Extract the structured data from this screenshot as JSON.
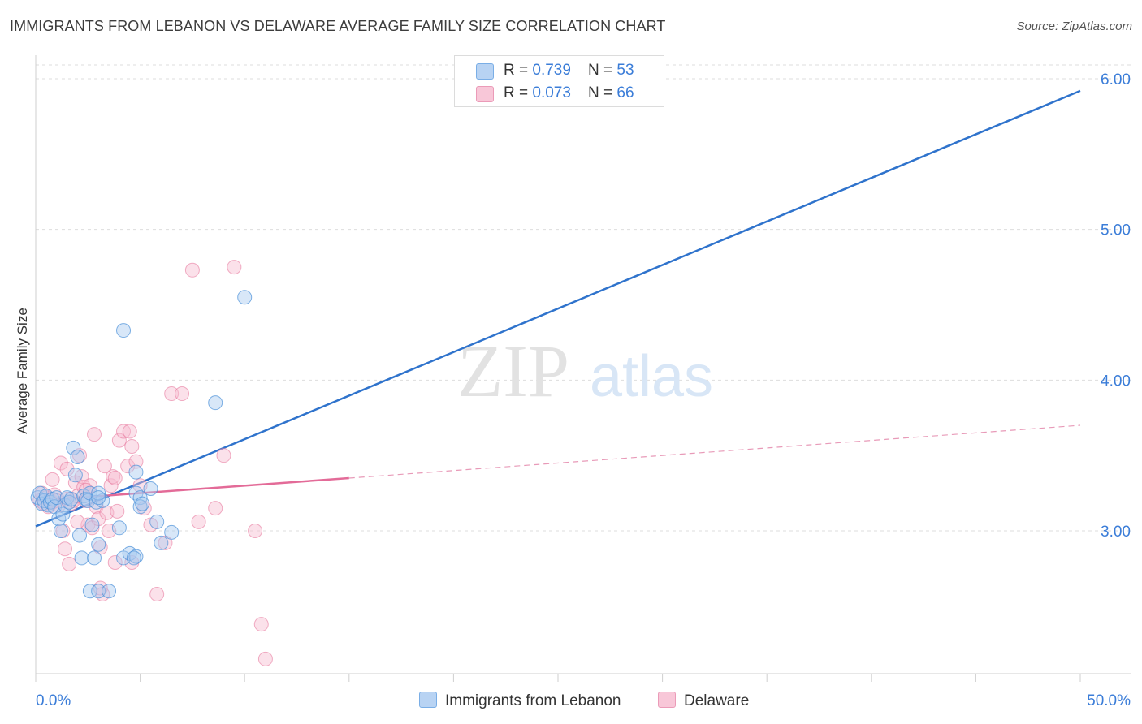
{
  "title": "IMMIGRANTS FROM LEBANON VS DELAWARE AVERAGE FAMILY SIZE CORRELATION CHART",
  "source": "Source: ZipAtlas.com",
  "watermark": {
    "zip": "ZIP",
    "atlas": "atlas"
  },
  "colors": {
    "blue": "#4a90d9",
    "blue_fill": "#a9c9f0",
    "pink": "#e8799f",
    "pink_fill": "#f6bcd0",
    "accent_text": "#3b7dd8",
    "grid": "#dddddd"
  },
  "legend": {
    "rows": [
      {
        "r_label": "R = ",
        "r_value": "0.739",
        "n_label": "N = ",
        "n_value": "53"
      },
      {
        "r_label": "R = ",
        "r_value": "0.073",
        "n_label": "N = ",
        "n_value": "66"
      }
    ]
  },
  "bottom_legend": {
    "series1": "Immigrants from Lebanon",
    "series2": "Delaware"
  },
  "chart_data": {
    "type": "scatter",
    "xlabel": "",
    "ylabel": "Average Family Size",
    "xlim": [
      0,
      50
    ],
    "ylim": [
      2.0,
      6.15
    ],
    "x_tick_labels": [
      "0.0%",
      "50.0%"
    ],
    "y_ticks": [
      3.0,
      4.0,
      5.0,
      6.0
    ],
    "y_tick_labels": [
      "3.00",
      "4.00",
      "5.00",
      "6.00"
    ],
    "grid": "horizontal dashed",
    "series": [
      {
        "name": "Immigrants from Lebanon",
        "r": 0.739,
        "n": 53,
        "trend": {
          "x0": 0.0,
          "y0": 3.03,
          "x1": 50.0,
          "y1": 5.92,
          "dashed_from": null
        },
        "points": [
          [
            0.1,
            3.22
          ],
          [
            0.2,
            3.25
          ],
          [
            0.3,
            3.18
          ],
          [
            0.4,
            3.2
          ],
          [
            0.5,
            3.23
          ],
          [
            0.6,
            3.17
          ],
          [
            0.7,
            3.19
          ],
          [
            0.8,
            3.21
          ],
          [
            0.9,
            3.16
          ],
          [
            1.0,
            3.22
          ],
          [
            1.1,
            3.08
          ],
          [
            1.2,
            3.0
          ],
          [
            1.3,
            3.11
          ],
          [
            1.4,
            3.17
          ],
          [
            1.5,
            3.22
          ],
          [
            1.6,
            3.19
          ],
          [
            1.7,
            3.21
          ],
          [
            1.8,
            3.55
          ],
          [
            1.9,
            3.37
          ],
          [
            2.0,
            3.49
          ],
          [
            2.1,
            2.97
          ],
          [
            2.2,
            2.82
          ],
          [
            2.3,
            3.23
          ],
          [
            2.4,
            3.21
          ],
          [
            2.5,
            3.2
          ],
          [
            2.6,
            3.25
          ],
          [
            2.7,
            3.04
          ],
          [
            2.8,
            2.82
          ],
          [
            2.9,
            3.19
          ],
          [
            3.0,
            2.91
          ],
          [
            3.2,
            3.2
          ],
          [
            2.6,
            2.6
          ],
          [
            3.0,
            2.6
          ],
          [
            3.0,
            3.25
          ],
          [
            3.0,
            3.22
          ],
          [
            3.5,
            2.6
          ],
          [
            4.0,
            3.02
          ],
          [
            4.2,
            2.82
          ],
          [
            4.5,
            2.85
          ],
          [
            4.8,
            3.25
          ],
          [
            5.0,
            3.22
          ],
          [
            5.5,
            3.28
          ],
          [
            6.0,
            2.92
          ],
          [
            4.8,
            2.83
          ],
          [
            4.7,
            2.82
          ],
          [
            5.0,
            3.16
          ],
          [
            4.2,
            4.33
          ],
          [
            5.1,
            3.18
          ],
          [
            4.8,
            3.39
          ],
          [
            5.8,
            3.06
          ],
          [
            8.6,
            3.85
          ],
          [
            6.5,
            2.99
          ],
          [
            10.0,
            4.55
          ]
        ]
      },
      {
        "name": "Delaware",
        "r": 0.073,
        "n": 66,
        "trend": {
          "x0": 0.0,
          "y0": 3.2,
          "x1": 50.0,
          "y1": 3.7,
          "dashed_from": 15.0
        },
        "points": [
          [
            0.2,
            3.2
          ],
          [
            0.3,
            3.25
          ],
          [
            0.4,
            3.18
          ],
          [
            0.5,
            3.22
          ],
          [
            0.6,
            3.16
          ],
          [
            0.7,
            3.2
          ],
          [
            0.8,
            3.19
          ],
          [
            0.9,
            3.24
          ],
          [
            1.0,
            3.2
          ],
          [
            1.1,
            3.17
          ],
          [
            1.2,
            3.45
          ],
          [
            1.3,
            3.0
          ],
          [
            1.4,
            2.88
          ],
          [
            1.5,
            3.21
          ],
          [
            1.6,
            2.78
          ],
          [
            1.7,
            3.18
          ],
          [
            1.8,
            3.2
          ],
          [
            1.9,
            3.32
          ],
          [
            2.0,
            3.23
          ],
          [
            2.1,
            3.5
          ],
          [
            2.2,
            3.36
          ],
          [
            2.3,
            3.29
          ],
          [
            2.4,
            3.2
          ],
          [
            2.5,
            3.04
          ],
          [
            2.6,
            3.3
          ],
          [
            2.7,
            3.02
          ],
          [
            2.8,
            3.64
          ],
          [
            2.9,
            3.16
          ],
          [
            3.0,
            3.08
          ],
          [
            3.1,
            2.89
          ],
          [
            3.2,
            2.58
          ],
          [
            3.3,
            3.43
          ],
          [
            3.4,
            3.12
          ],
          [
            3.5,
            3.0
          ],
          [
            3.6,
            3.3
          ],
          [
            3.7,
            3.36
          ],
          [
            3.8,
            3.35
          ],
          [
            3.9,
            3.13
          ],
          [
            4.0,
            3.6
          ],
          [
            4.2,
            3.66
          ],
          [
            4.4,
            3.43
          ],
          [
            4.5,
            3.66
          ],
          [
            4.6,
            3.56
          ],
          [
            4.8,
            3.46
          ],
          [
            5.0,
            3.3
          ],
          [
            5.2,
            3.15
          ],
          [
            5.5,
            3.04
          ],
          [
            5.8,
            2.58
          ],
          [
            6.2,
            2.92
          ],
          [
            6.5,
            3.91
          ],
          [
            7.0,
            3.91
          ],
          [
            7.5,
            4.73
          ],
          [
            7.8,
            3.06
          ],
          [
            8.6,
            3.15
          ],
          [
            9.0,
            3.5
          ],
          [
            9.5,
            4.75
          ],
          [
            10.5,
            3.0
          ],
          [
            10.8,
            2.38
          ],
          [
            11.0,
            2.15
          ],
          [
            3.1,
            2.62
          ],
          [
            3.8,
            2.79
          ],
          [
            0.8,
            3.34
          ],
          [
            1.5,
            3.41
          ],
          [
            2.0,
            3.06
          ],
          [
            2.4,
            3.27
          ],
          [
            4.6,
            2.79
          ]
        ]
      }
    ]
  }
}
